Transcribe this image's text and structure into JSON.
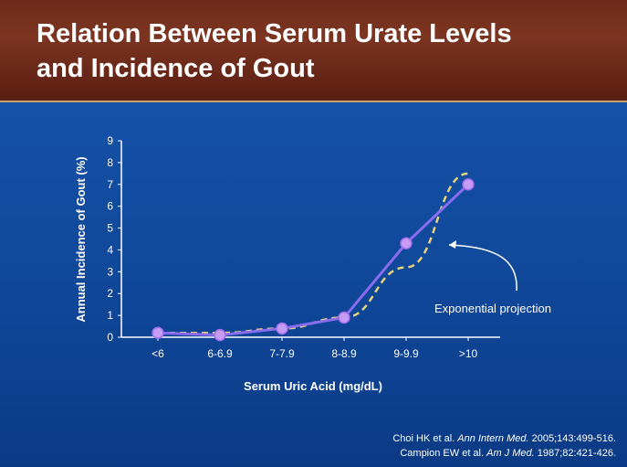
{
  "slide": {
    "title_line1": "Relation Between Serum Urate Levels",
    "title_line2": "and Incidence of Gout",
    "citations": [
      {
        "authors": "Choi HK et al.",
        "journal": "Ann Intern Med.",
        "rest": "2005;143:499-516."
      },
      {
        "authors": "Campion EW et al.",
        "journal": "Am J Med.",
        "rest": "1987;82:421-426."
      }
    ]
  },
  "colors": {
    "background": "#0d3f8c",
    "header": "#7c3521",
    "series_line": "#8a6cf0",
    "series_marker": "#c49bf5",
    "projection_line": "#e8d27a"
  },
  "chart_data": {
    "type": "line",
    "categories": [
      "<6",
      "6-6.9",
      "7-7.9",
      "8-8.9",
      "9-9.9",
      ">10"
    ],
    "series": [
      {
        "values": [
          0.2,
          0.1,
          0.4,
          0.9,
          4.3,
          7.0
        ]
      }
    ],
    "projection": {
      "label": "Exponential projection",
      "values": [
        0.2,
        0.2,
        0.4,
        0.9,
        3.2,
        7.5
      ]
    },
    "xlabel": "Serum Uric Acid (mg/dL)",
    "ylabel": "Annual Incidence of Gout (%)",
    "ylim": [
      0,
      9
    ],
    "yticks": [
      0,
      1,
      2,
      3,
      4,
      5,
      6,
      7,
      8,
      9
    ],
    "grid": false,
    "legend": "none"
  }
}
